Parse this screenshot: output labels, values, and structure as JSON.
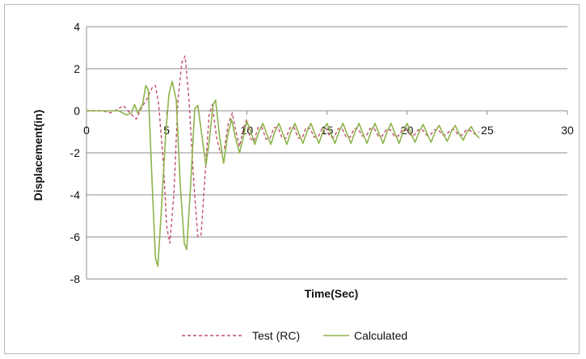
{
  "chart_data": {
    "type": "line",
    "title": "",
    "xlabel": "Time(Sec)",
    "ylabel": "Displacement(in)",
    "xlim": [
      0,
      30
    ],
    "ylim": [
      -8,
      4
    ],
    "x_ticks": [
      0,
      5,
      10,
      15,
      20,
      25,
      30
    ],
    "y_ticks": [
      4,
      2,
      0,
      -2,
      -4,
      -6,
      -8
    ],
    "grid": "horizontal",
    "legend_position": "bottom",
    "series": [
      {
        "name": "Test (RC)",
        "color": "#c0506e",
        "style": "dashed",
        "points": [
          [
            0,
            0
          ],
          [
            1,
            0
          ],
          [
            1.5,
            -0.1
          ],
          [
            2,
            0.1
          ],
          [
            2.3,
            0.25
          ],
          [
            2.7,
            -0.1
          ],
          [
            3.1,
            -0.4
          ],
          [
            3.4,
            0.1
          ],
          [
            3.8,
            0.6
          ],
          [
            4.1,
            1.1
          ],
          [
            4.3,
            1.2
          ],
          [
            4.5,
            0.3
          ],
          [
            4.8,
            -2.5
          ],
          [
            5.0,
            -5.5
          ],
          [
            5.2,
            -6.3
          ],
          [
            5.45,
            -4.0
          ],
          [
            5.7,
            0.5
          ],
          [
            5.95,
            2.3
          ],
          [
            6.15,
            2.6
          ],
          [
            6.4,
            0.5
          ],
          [
            6.7,
            -3.5
          ],
          [
            6.95,
            -6.0
          ],
          [
            7.15,
            -5.9
          ],
          [
            7.4,
            -3.0
          ],
          [
            7.65,
            -0.2
          ],
          [
            7.85,
            0.3
          ],
          [
            8.1,
            -1.2
          ],
          [
            8.35,
            -2.0
          ],
          [
            8.6,
            -1.8
          ],
          [
            8.85,
            -0.6
          ],
          [
            9.1,
            -0.1
          ],
          [
            9.3,
            -0.9
          ],
          [
            9.55,
            -1.7
          ],
          [
            9.8,
            -0.8
          ],
          [
            10.0,
            -0.4
          ],
          [
            10.2,
            -1.3
          ],
          [
            10.45,
            -1.45
          ],
          [
            10.7,
            -0.8
          ],
          [
            10.95,
            -0.8
          ],
          [
            11.2,
            -1.35
          ],
          [
            11.45,
            -1.3
          ],
          [
            11.7,
            -0.8
          ],
          [
            11.95,
            -0.8
          ],
          [
            12.2,
            -1.3
          ],
          [
            12.45,
            -1.3
          ],
          [
            12.7,
            -0.8
          ],
          [
            12.95,
            -0.8
          ],
          [
            13.2,
            -1.3
          ],
          [
            13.45,
            -1.3
          ],
          [
            13.7,
            -0.8
          ],
          [
            13.95,
            -0.85
          ],
          [
            14.2,
            -1.25
          ],
          [
            14.45,
            -1.25
          ],
          [
            14.7,
            -0.85
          ],
          [
            14.95,
            -0.85
          ],
          [
            15.2,
            -1.25
          ],
          [
            15.45,
            -1.25
          ],
          [
            15.7,
            -0.85
          ],
          [
            15.95,
            -0.85
          ],
          [
            16.2,
            -1.25
          ],
          [
            16.45,
            -1.25
          ],
          [
            16.7,
            -0.85
          ],
          [
            16.95,
            -0.85
          ],
          [
            17.2,
            -1.2
          ],
          [
            17.45,
            -1.2
          ],
          [
            17.7,
            -0.85
          ],
          [
            17.95,
            -0.85
          ],
          [
            18.2,
            -1.2
          ],
          [
            18.45,
            -1.2
          ],
          [
            18.7,
            -0.9
          ],
          [
            18.95,
            -0.9
          ],
          [
            19.2,
            -1.2
          ],
          [
            19.45,
            -1.2
          ],
          [
            19.7,
            -0.9
          ],
          [
            19.95,
            -0.9
          ],
          [
            20.2,
            -1.15
          ],
          [
            20.45,
            -1.15
          ],
          [
            20.7,
            -0.9
          ],
          [
            20.95,
            -0.9
          ],
          [
            21.2,
            -1.15
          ],
          [
            21.45,
            -1.15
          ],
          [
            21.7,
            -0.9
          ],
          [
            21.95,
            -0.9
          ],
          [
            22.2,
            -1.15
          ],
          [
            22.45,
            -1.15
          ],
          [
            22.7,
            -0.9
          ],
          [
            22.95,
            -0.9
          ],
          [
            23.2,
            -1.15
          ],
          [
            23.45,
            -1.15
          ],
          [
            23.7,
            -0.9
          ],
          [
            23.95,
            -0.95
          ],
          [
            24.2,
            -1.1
          ],
          [
            24.5,
            -1.0
          ]
        ]
      },
      {
        "name": "Calculated",
        "color": "#8db34a",
        "style": "solid",
        "points": [
          [
            0,
            0
          ],
          [
            2,
            0
          ],
          [
            2.5,
            -0.2
          ],
          [
            2.8,
            -0.1
          ],
          [
            3.0,
            0.3
          ],
          [
            3.2,
            -0.1
          ],
          [
            3.5,
            0.3
          ],
          [
            3.7,
            1.2
          ],
          [
            3.85,
            1.0
          ],
          [
            4.1,
            -3.5
          ],
          [
            4.3,
            -7.0
          ],
          [
            4.45,
            -7.4
          ],
          [
            4.65,
            -5.0
          ],
          [
            4.95,
            -1.0
          ],
          [
            5.15,
            0.8
          ],
          [
            5.35,
            1.4
          ],
          [
            5.6,
            0.5
          ],
          [
            5.85,
            -3.5
          ],
          [
            6.1,
            -6.3
          ],
          [
            6.25,
            -6.6
          ],
          [
            6.5,
            -3.5
          ],
          [
            6.75,
            0.1
          ],
          [
            6.95,
            0.25
          ],
          [
            7.2,
            -1.2
          ],
          [
            7.45,
            -2.6
          ],
          [
            7.65,
            -1.5
          ],
          [
            7.9,
            0.3
          ],
          [
            8.05,
            0.5
          ],
          [
            8.3,
            -1.2
          ],
          [
            8.55,
            -2.5
          ],
          [
            8.8,
            -1.2
          ],
          [
            9.05,
            -0.4
          ],
          [
            9.3,
            -1.3
          ],
          [
            9.55,
            -2.0
          ],
          [
            9.8,
            -1.2
          ],
          [
            10.0,
            -0.5
          ],
          [
            10.25,
            -1.0
          ],
          [
            10.5,
            -1.6
          ],
          [
            10.75,
            -1.0
          ],
          [
            11.0,
            -0.6
          ],
          [
            11.25,
            -1.1
          ],
          [
            11.5,
            -1.6
          ],
          [
            11.75,
            -1.0
          ],
          [
            12.0,
            -0.6
          ],
          [
            12.25,
            -1.1
          ],
          [
            12.5,
            -1.6
          ],
          [
            12.75,
            -1.0
          ],
          [
            13.0,
            -0.6
          ],
          [
            13.25,
            -1.1
          ],
          [
            13.5,
            -1.55
          ],
          [
            13.75,
            -1.0
          ],
          [
            14.0,
            -0.6
          ],
          [
            14.25,
            -1.1
          ],
          [
            14.5,
            -1.55
          ],
          [
            14.75,
            -1.0
          ],
          [
            15.0,
            -0.6
          ],
          [
            15.25,
            -1.1
          ],
          [
            15.5,
            -1.55
          ],
          [
            15.75,
            -1.0
          ],
          [
            16.0,
            -0.6
          ],
          [
            16.25,
            -1.1
          ],
          [
            16.5,
            -1.55
          ],
          [
            16.75,
            -1.0
          ],
          [
            17.0,
            -0.6
          ],
          [
            17.25,
            -1.1
          ],
          [
            17.5,
            -1.55
          ],
          [
            17.75,
            -1.0
          ],
          [
            18.0,
            -0.6
          ],
          [
            18.25,
            -1.1
          ],
          [
            18.5,
            -1.55
          ],
          [
            18.75,
            -1.0
          ],
          [
            19.0,
            -0.6
          ],
          [
            19.25,
            -1.1
          ],
          [
            19.5,
            -1.55
          ],
          [
            19.75,
            -1.0
          ],
          [
            20.0,
            -0.6
          ],
          [
            20.25,
            -1.1
          ],
          [
            20.5,
            -1.5
          ],
          [
            20.75,
            -1.0
          ],
          [
            21.0,
            -0.65
          ],
          [
            21.25,
            -1.1
          ],
          [
            21.5,
            -1.5
          ],
          [
            21.75,
            -1.0
          ],
          [
            22.0,
            -0.7
          ],
          [
            22.25,
            -1.1
          ],
          [
            22.5,
            -1.45
          ],
          [
            22.75,
            -1.0
          ],
          [
            23.0,
            -0.7
          ],
          [
            23.25,
            -1.1
          ],
          [
            23.5,
            -1.4
          ],
          [
            23.75,
            -1.0
          ],
          [
            24.0,
            -0.75
          ],
          [
            24.25,
            -1.1
          ],
          [
            24.5,
            -1.3
          ]
        ]
      }
    ]
  },
  "colors": {
    "gridline": "#8c8c8c",
    "axis": "#8c8c8c",
    "frame_border": "#b8b8b8"
  }
}
